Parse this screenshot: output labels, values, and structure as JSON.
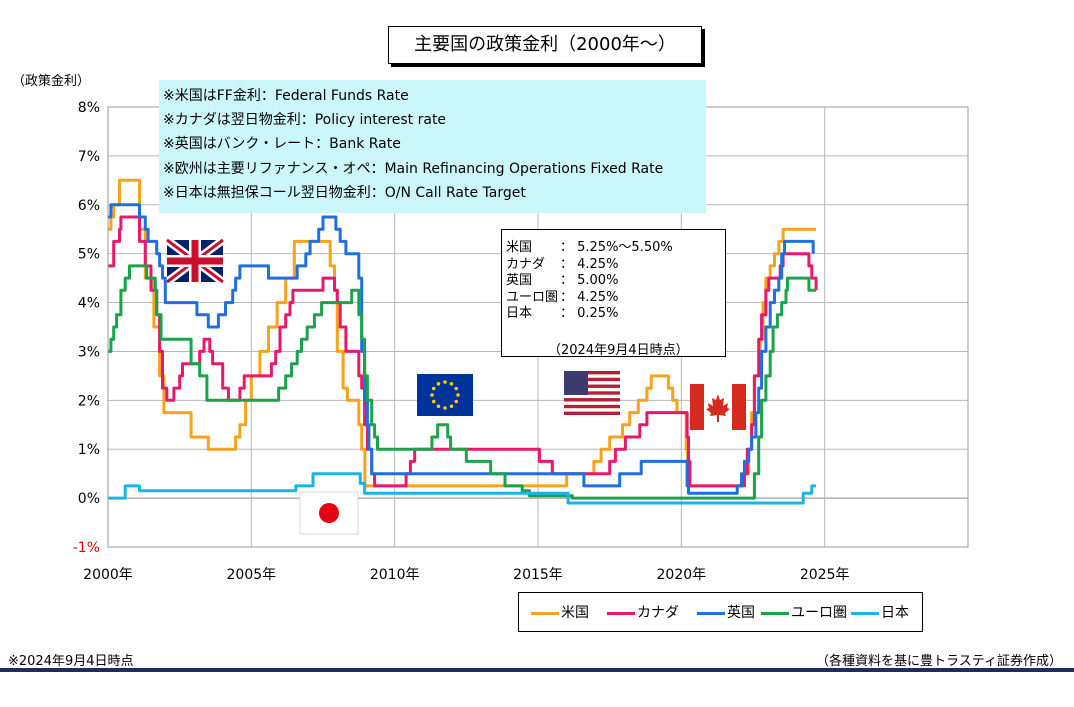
{
  "title": "主要国の政策金利（2000年〜）",
  "y_unit_label": "（政策金利）",
  "notes": [
    "※米国はFF金利：Federal Funds Rate",
    "※カナダは翌日物金利：Policy interest rate",
    "※英国はバンク・レート：Bank Rate",
    "※欧州は主要リファナンス・オペ：Main Refinancing Operations Fixed Rate",
    "※日本は無担保コール翌日物金利：O/N Call Rate Target"
  ],
  "current_rates": [
    {
      "name": "米国",
      "value": "：  5.25%〜5.50%"
    },
    {
      "name": "カナダ",
      "value": "：  4.25%"
    },
    {
      "name": "英国",
      "value": "：  5.00%"
    },
    {
      "name": "ユーロ圏",
      "value": "：  4.25%"
    },
    {
      "name": "日本",
      "value": "：  0.25%"
    }
  ],
  "current_rates_asof": "（2024年9月4日時点）",
  "footnote_left": "※2024年9月4日時点",
  "footnote_right": "（各種資料を基に豊トラスティ証券作成）",
  "flags": [
    "uk-flag",
    "eu-flag",
    "us-flag",
    "canada-flag",
    "japan-flag"
  ],
  "chart_data": {
    "type": "line",
    "title": "主要国の政策金利（2000年〜）",
    "xlabel": "",
    "ylabel": "（政策金利）",
    "xlim": [
      2000,
      2030
    ],
    "ylim": [
      -1,
      8
    ],
    "x_ticks": [
      2000,
      2005,
      2010,
      2015,
      2020,
      2025
    ],
    "x_tick_labels": [
      "2000年",
      "2005年",
      "2010年",
      "2015年",
      "2020年",
      "2025年"
    ],
    "y_ticks": [
      -1,
      0,
      1,
      2,
      3,
      4,
      5,
      6,
      7,
      8
    ],
    "y_tick_labels": [
      "-1%",
      "0%",
      "1%",
      "2%",
      "3%",
      "4%",
      "5%",
      "6%",
      "7%",
      "8%"
    ],
    "grid": true,
    "legend_position": "bottom-right",
    "series": [
      {
        "name": "米国",
        "color": "#f7a21b",
        "points": [
          [
            2000.0,
            5.5
          ],
          [
            2000.1,
            5.75
          ],
          [
            2000.2,
            6.0
          ],
          [
            2000.4,
            6.5
          ],
          [
            2001.0,
            6.5
          ],
          [
            2001.1,
            5.5
          ],
          [
            2001.3,
            4.5
          ],
          [
            2001.6,
            3.5
          ],
          [
            2001.8,
            2.5
          ],
          [
            2001.95,
            1.75
          ],
          [
            2002.9,
            1.25
          ],
          [
            2003.5,
            1.0
          ],
          [
            2004.45,
            1.25
          ],
          [
            2004.6,
            1.5
          ],
          [
            2004.8,
            2.0
          ],
          [
            2005.0,
            2.5
          ],
          [
            2005.3,
            3.0
          ],
          [
            2005.6,
            3.5
          ],
          [
            2005.9,
            4.0
          ],
          [
            2006.2,
            4.5
          ],
          [
            2006.5,
            5.25
          ],
          [
            2007.6,
            5.25
          ],
          [
            2007.75,
            4.75
          ],
          [
            2007.9,
            4.25
          ],
          [
            2008.0,
            3.0
          ],
          [
            2008.2,
            2.25
          ],
          [
            2008.35,
            2.0
          ],
          [
            2008.75,
            1.5
          ],
          [
            2008.85,
            1.0
          ],
          [
            2008.96,
            0.25
          ],
          [
            2015.9,
            0.25
          ],
          [
            2016.0,
            0.5
          ],
          [
            2016.95,
            0.75
          ],
          [
            2017.2,
            1.0
          ],
          [
            2017.5,
            1.25
          ],
          [
            2017.95,
            1.5
          ],
          [
            2018.2,
            1.75
          ],
          [
            2018.5,
            2.0
          ],
          [
            2018.8,
            2.25
          ],
          [
            2018.95,
            2.5
          ],
          [
            2019.55,
            2.25
          ],
          [
            2019.7,
            2.0
          ],
          [
            2019.85,
            1.75
          ],
          [
            2020.17,
            1.0
          ],
          [
            2020.22,
            0.25
          ],
          [
            2022.2,
            0.5
          ],
          [
            2022.35,
            1.0
          ],
          [
            2022.45,
            1.75
          ],
          [
            2022.55,
            2.5
          ],
          [
            2022.75,
            3.25
          ],
          [
            2022.85,
            4.0
          ],
          [
            2022.95,
            4.5
          ],
          [
            2023.1,
            4.75
          ],
          [
            2023.25,
            5.0
          ],
          [
            2023.4,
            5.25
          ],
          [
            2023.55,
            5.5
          ],
          [
            2024.7,
            5.5
          ]
        ]
      },
      {
        "name": "カナダ",
        "color": "#e8186c",
        "points": [
          [
            2000.0,
            4.75
          ],
          [
            2000.2,
            5.25
          ],
          [
            2000.4,
            5.5
          ],
          [
            2000.45,
            5.75
          ],
          [
            2001.0,
            5.75
          ],
          [
            2001.1,
            5.25
          ],
          [
            2001.3,
            4.75
          ],
          [
            2001.5,
            4.25
          ],
          [
            2001.7,
            3.75
          ],
          [
            2001.8,
            3.0
          ],
          [
            2001.9,
            2.25
          ],
          [
            2002.05,
            2.0
          ],
          [
            2002.3,
            2.25
          ],
          [
            2002.5,
            2.5
          ],
          [
            2002.6,
            2.75
          ],
          [
            2003.2,
            3.0
          ],
          [
            2003.35,
            3.25
          ],
          [
            2003.55,
            3.0
          ],
          [
            2003.65,
            2.75
          ],
          [
            2004.0,
            2.25
          ],
          [
            2004.2,
            2.0
          ],
          [
            2004.6,
            2.25
          ],
          [
            2004.75,
            2.5
          ],
          [
            2005.7,
            2.75
          ],
          [
            2005.85,
            3.0
          ],
          [
            2006.0,
            3.5
          ],
          [
            2006.2,
            3.75
          ],
          [
            2006.35,
            4.0
          ],
          [
            2006.45,
            4.25
          ],
          [
            2007.5,
            4.5
          ],
          [
            2007.9,
            4.25
          ],
          [
            2008.0,
            4.0
          ],
          [
            2008.1,
            3.5
          ],
          [
            2008.3,
            3.0
          ],
          [
            2008.75,
            2.5
          ],
          [
            2008.85,
            2.25
          ],
          [
            2008.95,
            1.5
          ],
          [
            2009.05,
            1.0
          ],
          [
            2009.2,
            0.5
          ],
          [
            2009.3,
            0.25
          ],
          [
            2010.4,
            0.5
          ],
          [
            2010.55,
            0.75
          ],
          [
            2010.7,
            1.0
          ],
          [
            2015.05,
            0.75
          ],
          [
            2015.5,
            0.5
          ],
          [
            2017.5,
            0.75
          ],
          [
            2017.7,
            1.0
          ],
          [
            2018.05,
            1.25
          ],
          [
            2018.55,
            1.5
          ],
          [
            2018.8,
            1.75
          ],
          [
            2020.2,
            1.25
          ],
          [
            2020.25,
            0.75
          ],
          [
            2020.3,
            0.25
          ],
          [
            2022.2,
            0.5
          ],
          [
            2022.3,
            1.0
          ],
          [
            2022.45,
            1.5
          ],
          [
            2022.55,
            2.5
          ],
          [
            2022.7,
            3.25
          ],
          [
            2022.8,
            3.75
          ],
          [
            2022.95,
            4.25
          ],
          [
            2023.05,
            4.5
          ],
          [
            2023.45,
            4.75
          ],
          [
            2023.55,
            5.0
          ],
          [
            2024.45,
            4.75
          ],
          [
            2024.55,
            4.5
          ],
          [
            2024.7,
            4.25
          ]
        ]
      },
      {
        "name": "英国",
        "color": "#1f6fe0",
        "points": [
          [
            2000.0,
            5.75
          ],
          [
            2000.1,
            6.0
          ],
          [
            2001.1,
            5.75
          ],
          [
            2001.3,
            5.5
          ],
          [
            2001.4,
            5.25
          ],
          [
            2001.7,
            5.0
          ],
          [
            2001.8,
            4.75
          ],
          [
            2001.9,
            4.5
          ],
          [
            2002.0,
            4.0
          ],
          [
            2003.1,
            3.75
          ],
          [
            2003.5,
            3.5
          ],
          [
            2003.85,
            3.75
          ],
          [
            2004.1,
            4.0
          ],
          [
            2004.35,
            4.25
          ],
          [
            2004.45,
            4.5
          ],
          [
            2004.6,
            4.75
          ],
          [
            2005.6,
            4.5
          ],
          [
            2006.6,
            4.75
          ],
          [
            2006.9,
            5.0
          ],
          [
            2007.05,
            5.25
          ],
          [
            2007.35,
            5.5
          ],
          [
            2007.5,
            5.75
          ],
          [
            2007.95,
            5.5
          ],
          [
            2008.1,
            5.25
          ],
          [
            2008.3,
            5.0
          ],
          [
            2008.75,
            4.5
          ],
          [
            2008.85,
            3.0
          ],
          [
            2008.95,
            2.0
          ],
          [
            2009.05,
            1.5
          ],
          [
            2009.1,
            1.0
          ],
          [
            2009.2,
            0.5
          ],
          [
            2016.6,
            0.25
          ],
          [
            2017.85,
            0.5
          ],
          [
            2018.6,
            0.75
          ],
          [
            2020.2,
            0.25
          ],
          [
            2020.25,
            0.1
          ],
          [
            2021.95,
            0.25
          ],
          [
            2022.1,
            0.5
          ],
          [
            2022.2,
            0.75
          ],
          [
            2022.35,
            1.0
          ],
          [
            2022.45,
            1.25
          ],
          [
            2022.6,
            1.75
          ],
          [
            2022.7,
            2.25
          ],
          [
            2022.8,
            3.0
          ],
          [
            2022.95,
            3.5
          ],
          [
            2023.1,
            4.0
          ],
          [
            2023.25,
            4.25
          ],
          [
            2023.4,
            4.5
          ],
          [
            2023.5,
            5.0
          ],
          [
            2023.6,
            5.25
          ],
          [
            2024.6,
            5.0
          ]
        ]
      },
      {
        "name": "ユーロ圏",
        "color": "#1aa34a",
        "points": [
          [
            2000.0,
            3.0
          ],
          [
            2000.1,
            3.25
          ],
          [
            2000.2,
            3.5
          ],
          [
            2000.3,
            3.75
          ],
          [
            2000.45,
            4.25
          ],
          [
            2000.6,
            4.5
          ],
          [
            2000.75,
            4.75
          ],
          [
            2001.35,
            4.5
          ],
          [
            2001.65,
            4.25
          ],
          [
            2001.7,
            3.75
          ],
          [
            2001.85,
            3.25
          ],
          [
            2002.9,
            2.75
          ],
          [
            2003.2,
            2.5
          ],
          [
            2003.45,
            2.0
          ],
          [
            2005.95,
            2.25
          ],
          [
            2006.2,
            2.5
          ],
          [
            2006.4,
            2.75
          ],
          [
            2006.6,
            3.0
          ],
          [
            2006.75,
            3.25
          ],
          [
            2006.95,
            3.5
          ],
          [
            2007.2,
            3.75
          ],
          [
            2007.45,
            4.0
          ],
          [
            2008.5,
            4.25
          ],
          [
            2008.75,
            3.75
          ],
          [
            2008.85,
            3.25
          ],
          [
            2008.95,
            2.5
          ],
          [
            2009.05,
            2.0
          ],
          [
            2009.2,
            1.5
          ],
          [
            2009.3,
            1.25
          ],
          [
            2009.4,
            1.0
          ],
          [
            2011.3,
            1.25
          ],
          [
            2011.5,
            1.5
          ],
          [
            2011.85,
            1.25
          ],
          [
            2011.95,
            1.0
          ],
          [
            2012.5,
            0.75
          ],
          [
            2013.35,
            0.5
          ],
          [
            2013.85,
            0.25
          ],
          [
            2014.45,
            0.15
          ],
          [
            2014.7,
            0.05
          ],
          [
            2016.2,
            0.0
          ],
          [
            2022.55,
            0.5
          ],
          [
            2022.7,
            1.25
          ],
          [
            2022.8,
            2.0
          ],
          [
            2022.95,
            2.5
          ],
          [
            2023.1,
            3.0
          ],
          [
            2023.2,
            3.5
          ],
          [
            2023.35,
            3.75
          ],
          [
            2023.5,
            4.0
          ],
          [
            2023.65,
            4.25
          ],
          [
            2023.7,
            4.5
          ],
          [
            2024.45,
            4.25
          ],
          [
            2024.7,
            4.25
          ]
        ]
      },
      {
        "name": "日本",
        "color": "#1ab4e6",
        "points": [
          [
            2000.0,
            0.0
          ],
          [
            2000.6,
            0.25
          ],
          [
            2001.1,
            0.15
          ],
          [
            2006.5,
            0.15
          ],
          [
            2006.55,
            0.25
          ],
          [
            2007.15,
            0.5
          ],
          [
            2008.8,
            0.3
          ],
          [
            2008.95,
            0.1
          ],
          [
            2016.05,
            -0.1
          ],
          [
            2024.2,
            -0.1
          ],
          [
            2024.25,
            0.1
          ],
          [
            2024.55,
            0.25
          ],
          [
            2024.7,
            0.25
          ]
        ]
      }
    ]
  }
}
